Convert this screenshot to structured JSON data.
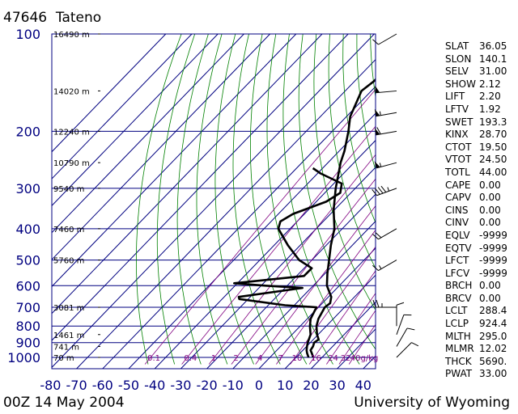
{
  "header": {
    "station_id": "47646",
    "station_name": "Tateno"
  },
  "footer": {
    "datetime": "00Z 14 May 2004",
    "source": "University of Wyoming"
  },
  "colors": {
    "axis_text": "#000080",
    "grid": "#000080",
    "dry_adiabat": "#008000",
    "mixing_ratio": "#800080",
    "profile": "#000000"
  },
  "chart_data": {
    "type": "skew-t sounding",
    "pressure_axis": {
      "ticks": [
        100,
        200,
        300,
        400,
        500,
        600,
        700,
        800,
        900,
        1000
      ],
      "range": [
        1000,
        100
      ],
      "scale": "log"
    },
    "temperature_axis": {
      "ticks": [
        -80,
        -70,
        -60,
        -50,
        -40,
        -30,
        -20,
        -10,
        0,
        10,
        20,
        30,
        40
      ],
      "unit": "°C"
    },
    "height_labels": [
      {
        "p": 100,
        "label": "16490 m"
      },
      {
        "p": 150,
        "label": "14020 m"
      },
      {
        "p": 200,
        "label": "12240 m"
      },
      {
        "p": 250,
        "label": "10790 m"
      },
      {
        "p": 300,
        "label": "9540 m"
      },
      {
        "p": 400,
        "label": "7460 m"
      },
      {
        "p": 500,
        "label": "5760 m"
      },
      {
        "p": 700,
        "label": "3081 m"
      },
      {
        "p": 850,
        "label": "1461 m"
      },
      {
        "p": 925,
        "label": "741 m"
      },
      {
        "p": 1000,
        "label": "70 m"
      }
    ],
    "mixing_ratio_labels": [
      {
        "w": 0.1,
        "label": "0.1"
      },
      {
        "w": 0.4,
        "label": "0.4"
      },
      {
        "w": 1,
        "label": "1"
      },
      {
        "w": 2,
        "label": "2"
      },
      {
        "w": 4,
        "label": "4"
      },
      {
        "w": 7,
        "label": "7"
      },
      {
        "w": 10,
        "label": "10"
      },
      {
        "w": 16,
        "label": "16"
      },
      {
        "w": 24,
        "label": "24"
      },
      {
        "w": 32,
        "label": "32"
      },
      {
        "w": 40,
        "label": "40g/kg"
      }
    ],
    "temperature_profile": [
      {
        "p": 1000,
        "t": 20.8
      },
      {
        "p": 970,
        "t": 18.6
      },
      {
        "p": 950,
        "t": 17.0
      },
      {
        "p": 925,
        "t": 16.5
      },
      {
        "p": 900,
        "t": 15.5
      },
      {
        "p": 880,
        "t": 16.0
      },
      {
        "p": 850,
        "t": 13.5
      },
      {
        "p": 800,
        "t": 10.0
      },
      {
        "p": 760,
        "t": 8.0
      },
      {
        "p": 700,
        "t": 6.0
      },
      {
        "p": 680,
        "t": 6.5
      },
      {
        "p": 650,
        "t": 4.5
      },
      {
        "p": 600,
        "t": -1.5
      },
      {
        "p": 550,
        "t": -6.0
      },
      {
        "p": 500,
        "t": -10.5
      },
      {
        "p": 450,
        "t": -15.5
      },
      {
        "p": 400,
        "t": -20.5
      },
      {
        "p": 350,
        "t": -28.0
      },
      {
        "p": 300,
        "t": -35.5
      },
      {
        "p": 250,
        "t": -43.5
      },
      {
        "p": 230,
        "t": -46.5
      },
      {
        "p": 200,
        "t": -52.5
      },
      {
        "p": 180,
        "t": -57.5
      },
      {
        "p": 150,
        "t": -63.0
      },
      {
        "p": 140,
        "t": -62.0
      },
      {
        "p": 100,
        "t": -62.0
      }
    ],
    "dewpoint_profile": [
      {
        "p": 1000,
        "t": 19.0
      },
      {
        "p": 970,
        "t": 16.8
      },
      {
        "p": 950,
        "t": 15.5
      },
      {
        "p": 925,
        "t": 14.2
      },
      {
        "p": 900,
        "t": 13.0
      },
      {
        "p": 850,
        "t": 11.0
      },
      {
        "p": 800,
        "t": 7.5
      },
      {
        "p": 760,
        "t": 5.0
      },
      {
        "p": 700,
        "t": 2.8
      },
      {
        "p": 690,
        "t": -10.0
      },
      {
        "p": 660,
        "t": -30.0
      },
      {
        "p": 650,
        "t": -31.0
      },
      {
        "p": 610,
        "t": -10.0
      },
      {
        "p": 600,
        "t": -25.0
      },
      {
        "p": 590,
        "t": -38.0
      },
      {
        "p": 560,
        "t": -14.0
      },
      {
        "p": 530,
        "t": -14.0
      },
      {
        "p": 500,
        "t": -22.0
      },
      {
        "p": 450,
        "t": -32.0
      },
      {
        "p": 400,
        "t": -42.0
      },
      {
        "p": 380,
        "t": -44.0
      },
      {
        "p": 360,
        "t": -42.0
      },
      {
        "p": 330,
        "t": -34.0
      },
      {
        "p": 310,
        "t": -32.0
      },
      {
        "p": 290,
        "t": -35.0
      },
      {
        "p": 270,
        "t": -47.0
      },
      {
        "p": 260,
        "t": -52.0
      }
    ],
    "wind_barbs": [
      {
        "p": 1000,
        "dir": 45,
        "spd": 10
      },
      {
        "p": 925,
        "dir": 30,
        "spd": 10
      },
      {
        "p": 850,
        "dir": 20,
        "spd": 10
      },
      {
        "p": 800,
        "dir": 0,
        "spd": 10
      },
      {
        "p": 700,
        "dir": 270,
        "spd": 25
      },
      {
        "p": 500,
        "dir": 240,
        "spd": 15
      },
      {
        "p": 400,
        "dir": 240,
        "spd": 20
      },
      {
        "p": 300,
        "dir": 250,
        "spd": 45
      },
      {
        "p": 250,
        "dir": 255,
        "spd": 55
      },
      {
        "p": 200,
        "dir": 260,
        "spd": 60
      },
      {
        "p": 175,
        "dir": 260,
        "spd": 55
      },
      {
        "p": 150,
        "dir": 265,
        "spd": 50
      },
      {
        "p": 100,
        "dir": 240,
        "spd": 10
      }
    ]
  },
  "indices": [
    {
      "name": "SLAT",
      "value": "36.05"
    },
    {
      "name": "SLON",
      "value": "140.1"
    },
    {
      "name": "SELV",
      "value": "31.00"
    },
    {
      "name": "SHOW",
      "value": "2.12"
    },
    {
      "name": "LIFT",
      "value": "2.20"
    },
    {
      "name": "LFTV",
      "value": "1.92"
    },
    {
      "name": "SWET",
      "value": "193.3"
    },
    {
      "name": "KINX",
      "value": "28.70"
    },
    {
      "name": "CTOT",
      "value": "19.50"
    },
    {
      "name": "VTOT",
      "value": "24.50"
    },
    {
      "name": "TOTL",
      "value": "44.00"
    },
    {
      "name": "CAPE",
      "value": "0.00"
    },
    {
      "name": "CAPV",
      "value": "0.00"
    },
    {
      "name": "CINS",
      "value": "0.00"
    },
    {
      "name": "CINV",
      "value": "0.00"
    },
    {
      "name": "EQLV",
      "value": "-9999"
    },
    {
      "name": "EQTV",
      "value": "-9999"
    },
    {
      "name": "LFCT",
      "value": "-9999"
    },
    {
      "name": "LFCV",
      "value": "-9999"
    },
    {
      "name": "BRCH",
      "value": "0.00"
    },
    {
      "name": "BRCV",
      "value": "0.00"
    },
    {
      "name": "LCLT",
      "value": "288.4"
    },
    {
      "name": "LCLP",
      "value": "924.4"
    },
    {
      "name": "MLTH",
      "value": "295.0"
    },
    {
      "name": "MLMR",
      "value": "12.02"
    },
    {
      "name": "THCK",
      "value": "5690."
    },
    {
      "name": "PWAT",
      "value": "33.00"
    }
  ]
}
